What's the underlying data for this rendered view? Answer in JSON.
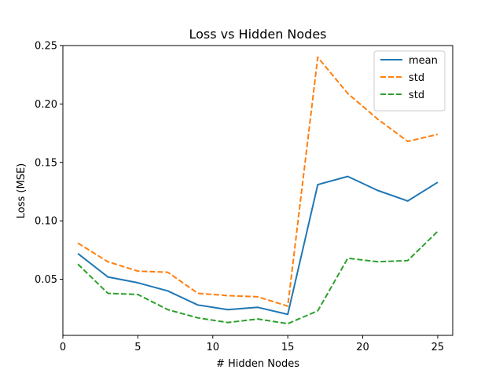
{
  "chart_data": {
    "type": "line",
    "title": "Loss vs Hidden Nodes",
    "xlabel": "# Hidden Nodes",
    "ylabel": "Loss (MSE)",
    "xlim": [
      0,
      26
    ],
    "ylim": [
      0.002,
      0.25
    ],
    "xticks": [
      0,
      5,
      10,
      15,
      20,
      25
    ],
    "xtick_labels": [
      "0",
      "5",
      "10",
      "15",
      "20",
      "25"
    ],
    "yticks": [
      0.05,
      0.1,
      0.15,
      0.2,
      0.25
    ],
    "ytick_labels": [
      "0.05",
      "0.10",
      "0.15",
      "0.20",
      "0.25"
    ],
    "grid": false,
    "legend_position": "top-right",
    "x": [
      1,
      3,
      5,
      7,
      9,
      11,
      13,
      15,
      17,
      19,
      21,
      23,
      25
    ],
    "series": [
      {
        "name": "mean",
        "color": "#1f77b4",
        "style": "solid",
        "values": [
          0.072,
          0.052,
          0.047,
          0.04,
          0.028,
          0.024,
          0.026,
          0.02,
          0.131,
          0.138,
          0.126,
          0.117,
          0.133
        ]
      },
      {
        "name": "std",
        "color": "#ff7f0e",
        "style": "dashed",
        "values": [
          0.081,
          0.065,
          0.057,
          0.056,
          0.038,
          0.036,
          0.035,
          0.027,
          0.24,
          0.209,
          0.187,
          0.168,
          0.174
        ]
      },
      {
        "name": "std",
        "color": "#2ca02c",
        "style": "dashed",
        "values": [
          0.063,
          0.038,
          0.037,
          0.024,
          0.017,
          0.013,
          0.016,
          0.012,
          0.023,
          0.068,
          0.065,
          0.066,
          0.091
        ]
      }
    ]
  }
}
